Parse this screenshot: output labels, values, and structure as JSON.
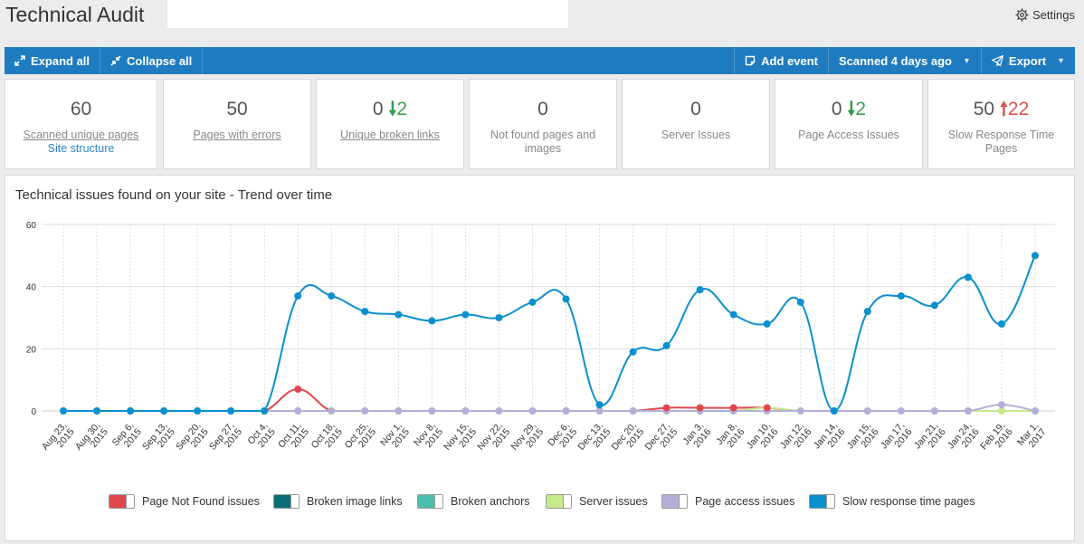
{
  "header": {
    "title": "Technical Audit",
    "settings_label": "Settings",
    "settings_icon": "gear-icon"
  },
  "toolbar": {
    "expand_all": "Expand all",
    "collapse_all": "Collapse all",
    "add_event": "Add event",
    "scanned": "Scanned 4 days ago",
    "export": "Export"
  },
  "stats": [
    {
      "value": "60",
      "label": "Scanned unique pages",
      "link": "Site structure"
    },
    {
      "value": "50",
      "label": "Pages with errors"
    },
    {
      "value": "0",
      "delta": "2",
      "direction": "down",
      "label": "Unique broken links"
    },
    {
      "value": "0",
      "label": "Not found pages and images"
    },
    {
      "value": "0",
      "label": "Server Issues"
    },
    {
      "value": "0",
      "delta": "2",
      "direction": "down",
      "label": "Page Access Issues"
    },
    {
      "value": "50",
      "delta": "22",
      "direction": "up",
      "label": "Slow Response Time Pages"
    }
  ],
  "chart_title": "Technical issues found on your site - Trend over time",
  "chart_data": {
    "type": "line",
    "title": "Technical issues found on your site - Trend over time",
    "ylim": [
      0,
      60
    ],
    "y_ticks": [
      0,
      20,
      40,
      60
    ],
    "grid": true,
    "legend_position": "bottom",
    "x_labels": [
      [
        "Aug 23,",
        "2015"
      ],
      [
        "Aug 30,",
        "2015"
      ],
      [
        "Sep 6,",
        "2015"
      ],
      [
        "Sep 13,",
        "2015"
      ],
      [
        "Sep 20,",
        "2015"
      ],
      [
        "Sep 27,",
        "2015"
      ],
      [
        "Oct 4,",
        "2015"
      ],
      [
        "Oct 11,",
        "2015"
      ],
      [
        "Oct 18,",
        "2015"
      ],
      [
        "Oct 25,",
        "2015"
      ],
      [
        "Nov 1,",
        "2015"
      ],
      [
        "Nov 8,",
        "2015"
      ],
      [
        "Nov 15,",
        "2015"
      ],
      [
        "Nov 22,",
        "2015"
      ],
      [
        "Nov 29,",
        "2015"
      ],
      [
        "Dec 6,",
        "2015"
      ],
      [
        "Dec 13,",
        "2015"
      ],
      [
        "Dec 20,",
        "2015"
      ],
      [
        "Dec 27,",
        "2015"
      ],
      [
        "Jan 3,",
        "2016"
      ],
      [
        "Jan 8,",
        "2016"
      ],
      [
        "Jan 10,",
        "2016"
      ],
      [
        "Jan 12,",
        "2016"
      ],
      [
        "Jan 14,",
        "2016"
      ],
      [
        "Jan 15,",
        "2016"
      ],
      [
        "Jan 17,",
        "2016"
      ],
      [
        "Jan 21,",
        "2016"
      ],
      [
        "Jan 24,",
        "2016"
      ],
      [
        "Feb 19,",
        "2016"
      ],
      [
        "Mar 1,",
        "2017"
      ]
    ],
    "series": [
      {
        "name": "Page Not Found issues",
        "color": "#e0474c",
        "markers": false,
        "values": [
          0,
          0,
          0,
          0,
          0,
          0,
          0,
          7,
          0,
          0,
          0,
          0,
          0,
          0,
          0,
          0,
          0,
          0,
          1,
          1,
          1,
          1,
          0,
          0,
          0,
          0,
          0,
          0,
          0,
          0
        ]
      },
      {
        "name": "Broken image links",
        "color": "#0a6f76",
        "markers": false,
        "values": [
          0,
          0,
          0,
          0,
          0,
          0,
          0,
          0,
          0,
          0,
          0,
          0,
          0,
          0,
          0,
          0,
          0,
          0,
          0,
          0,
          0,
          0,
          0,
          0,
          0,
          0,
          0,
          0,
          0,
          0
        ]
      },
      {
        "name": "Broken anchors",
        "color": "#4bbfae",
        "markers": false,
        "values": [
          0,
          0,
          0,
          0,
          0,
          0,
          0,
          0,
          0,
          0,
          0,
          0,
          0,
          0,
          0,
          0,
          0,
          0,
          0,
          0,
          0,
          0,
          0,
          0,
          0,
          0,
          0,
          0,
          0,
          0
        ]
      },
      {
        "name": "Server issues",
        "color": "#c6e98a",
        "markers": true,
        "values": [
          0,
          0,
          0,
          0,
          0,
          0,
          0,
          0,
          0,
          0,
          0,
          0,
          0,
          0,
          0,
          0,
          0,
          0,
          0,
          0,
          0,
          1,
          0,
          0,
          0,
          0,
          0,
          0,
          0,
          0
        ]
      },
      {
        "name": "Page access issues",
        "color": "#b3afd9",
        "markers": true,
        "values": [
          0,
          0,
          0,
          0,
          0,
          0,
          0,
          0,
          0,
          0,
          0,
          0,
          0,
          0,
          0,
          0,
          0,
          0,
          0,
          0,
          0,
          0,
          0,
          0,
          0,
          0,
          0,
          0,
          2,
          0
        ]
      },
      {
        "name": "Slow response time pages",
        "color": "#0a8fcf",
        "markers": true,
        "values": [
          0,
          0,
          0,
          0,
          0,
          0,
          0,
          37,
          37,
          32,
          31,
          29,
          31,
          30,
          35,
          36,
          2,
          19,
          21,
          39,
          31,
          28,
          35,
          0,
          32,
          37,
          34,
          43,
          28,
          50
        ]
      }
    ]
  }
}
